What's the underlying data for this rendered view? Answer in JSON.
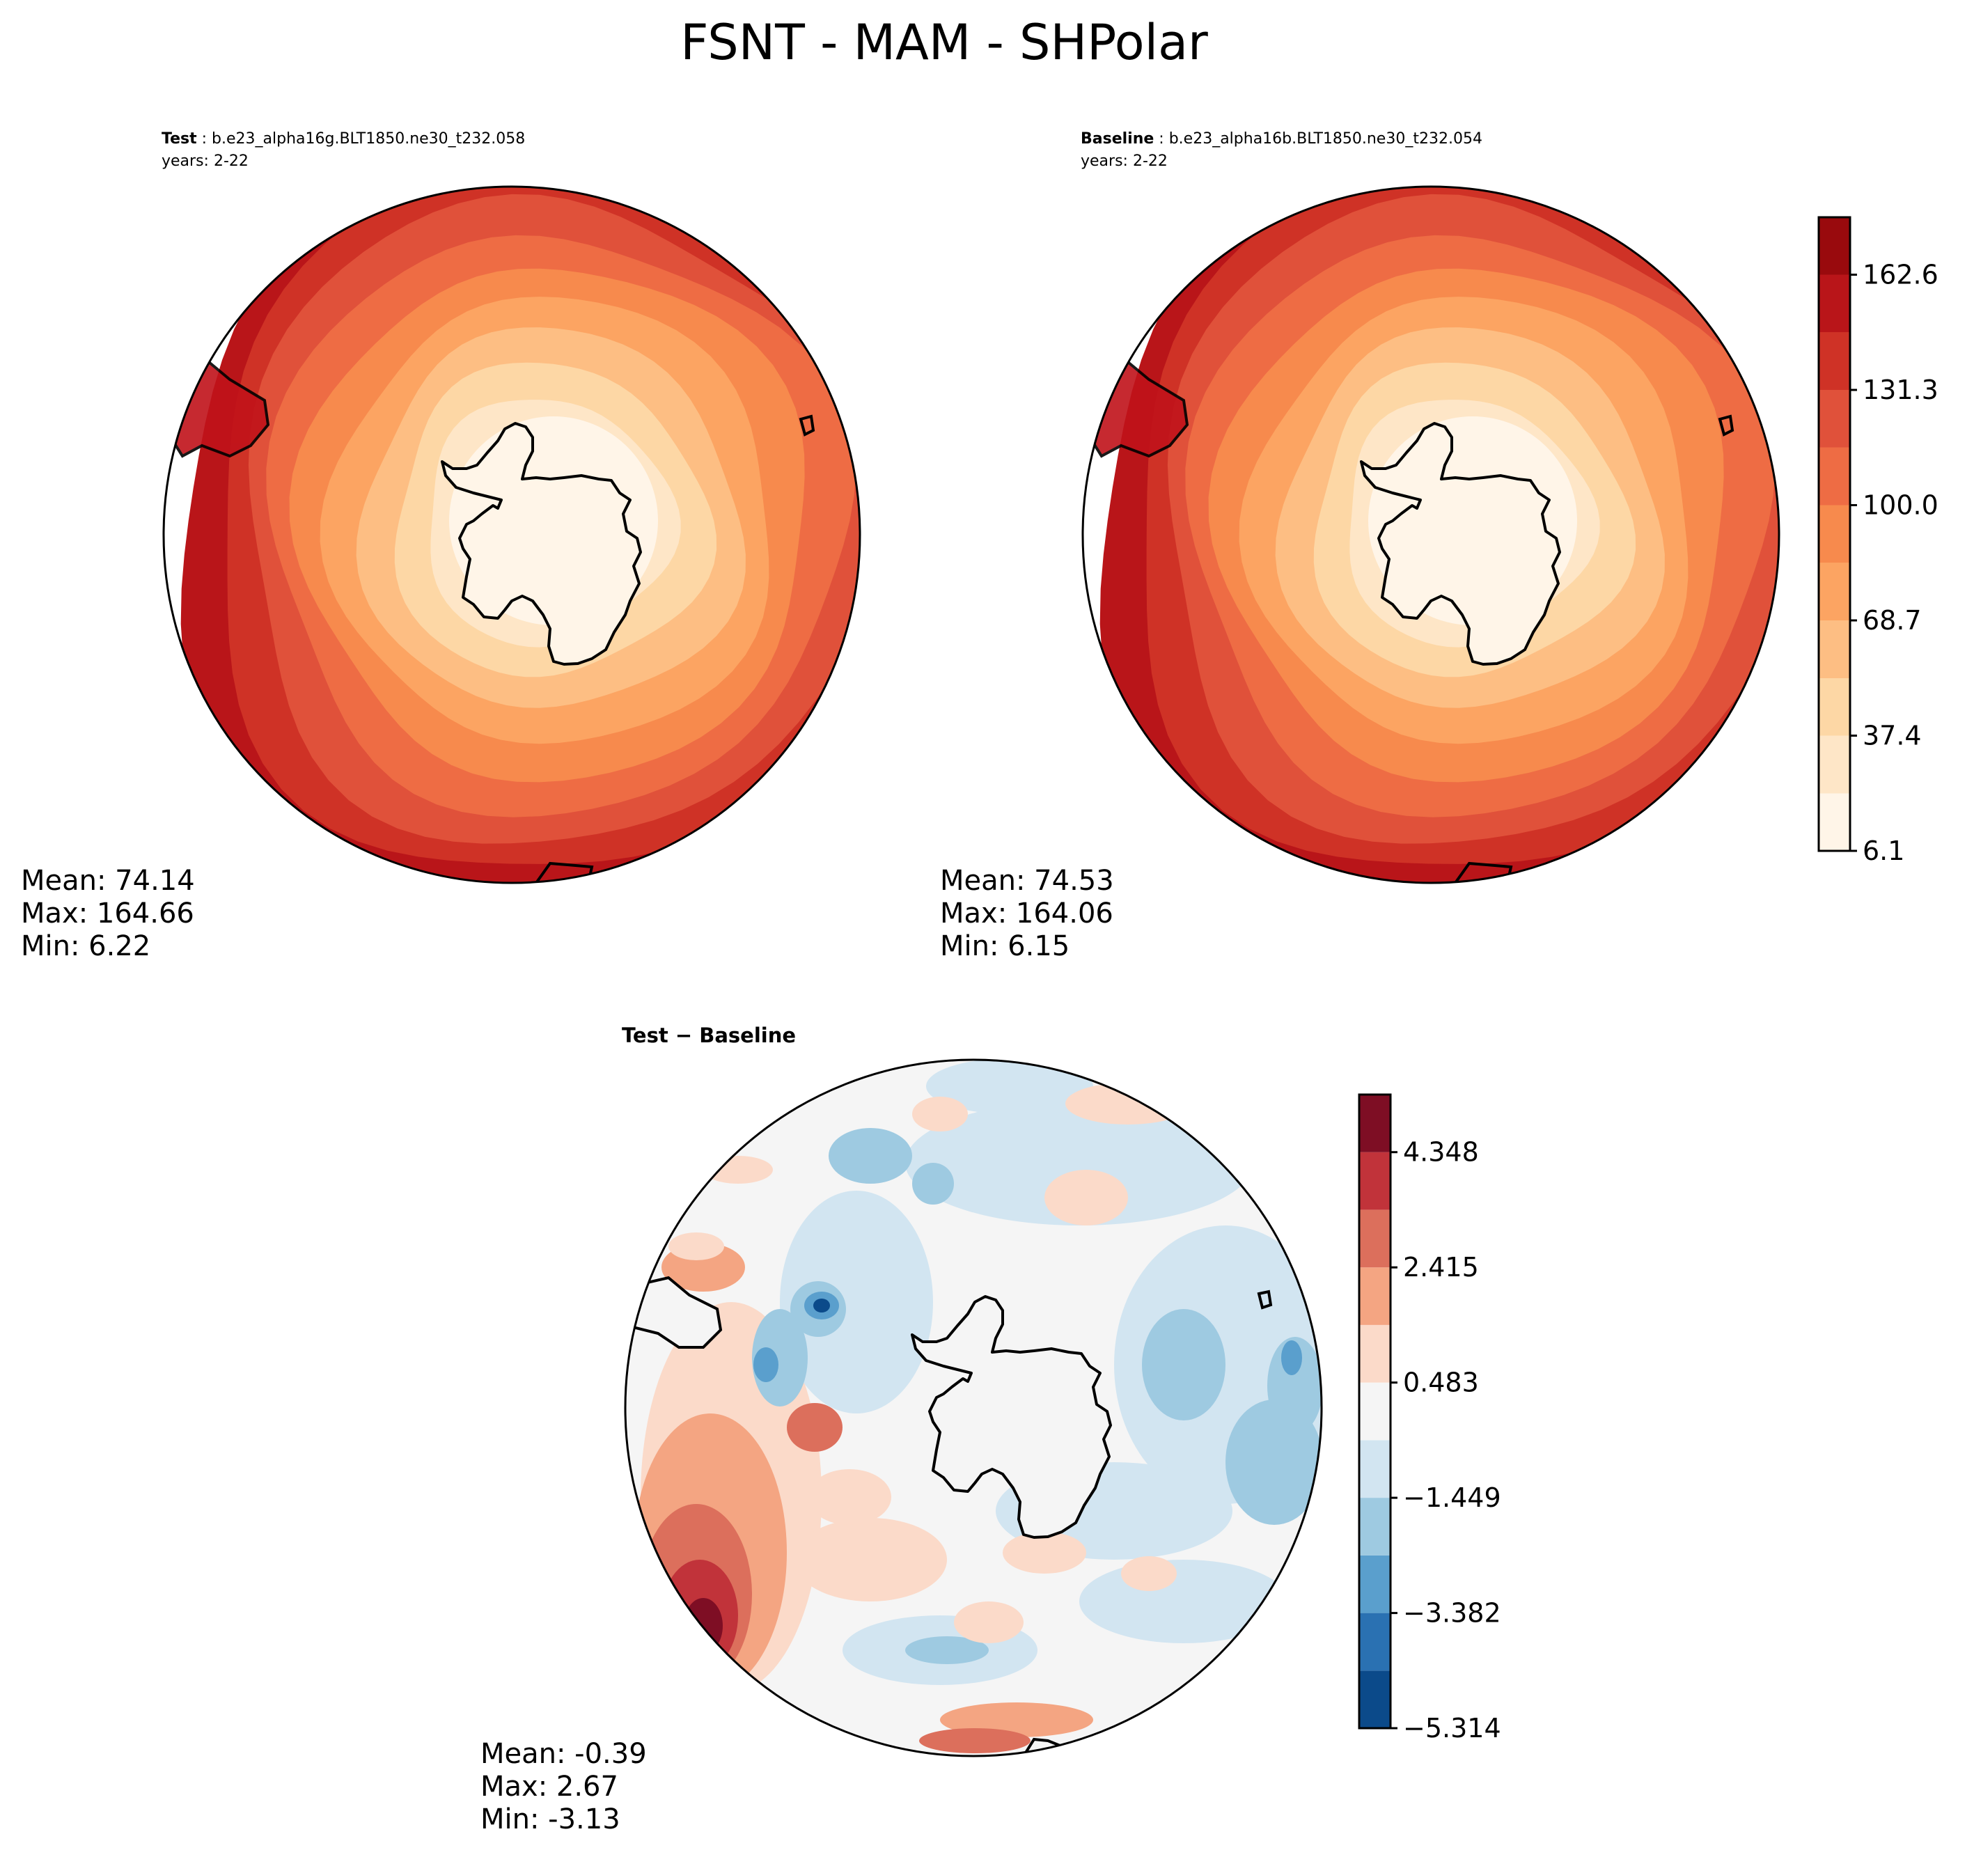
{
  "figure": {
    "title": "FSNT - MAM - SHPolar"
  },
  "chart_data": [
    {
      "type": "heatmap",
      "projection": "south-polar-stereographic",
      "panel": "test",
      "title_label": "Test",
      "case": "b.e23_alpha16g.BLT1850.ne30_t232.058",
      "years": "years: 2-22",
      "stats": {
        "mean": "Mean: 74.14",
        "max": "Max: 164.66",
        "min": "Min:  6.22"
      },
      "field": "concentric bands increasing from the pole toward the equatorward edge"
    },
    {
      "type": "heatmap",
      "projection": "south-polar-stereographic",
      "panel": "baseline",
      "title_label": "Baseline",
      "case": "b.e23_alpha16b.BLT1850.ne30_t232.054",
      "years": "years: 2-22",
      "stats": {
        "mean": "Mean: 74.53",
        "max": "Max: 164.06",
        "min": "Min:  6.15"
      },
      "colorbar": {
        "ticks": [
          "6.1",
          "37.4",
          "68.7",
          "100.0",
          "131.3",
          "162.6"
        ],
        "range": [
          6.1,
          178.2
        ],
        "levels": [
          6.1,
          21.7,
          37.4,
          53.0,
          68.7,
          84.4,
          100.0,
          115.7,
          131.3,
          147.0,
          162.6,
          178.2
        ],
        "colors": [
          "#fff5e8",
          "#fee6c7",
          "#fdd7a5",
          "#fdbe83",
          "#fca462",
          "#f78a4d",
          "#ee6c44",
          "#e0513a",
          "#cf3226",
          "#b91519",
          "#990a0d"
        ]
      }
    },
    {
      "type": "heatmap",
      "projection": "south-polar-stereographic",
      "panel": "difference",
      "title_label": "Test − Baseline",
      "stats": {
        "mean": "Mean: -0.39",
        "max": "Max:  2.67",
        "min": "Min: -3.13"
      },
      "colorbar": {
        "ticks": [
          "−5.314",
          "−3.382",
          "−1.449",
          "0.483",
          "2.415",
          "4.348"
        ],
        "range": [
          -5.314,
          5.314
        ],
        "levels": [
          -5.314,
          -4.348,
          -3.382,
          -2.415,
          -1.449,
          -0.483,
          0.483,
          1.449,
          2.415,
          3.382,
          4.348,
          5.314
        ],
        "colors": [
          "#0b4a8a",
          "#2a71b2",
          "#5a9fcd",
          "#9ecae1",
          "#d2e5f1",
          "#f5f5f5",
          "#fbdac9",
          "#f4a582",
          "#dc6f5c",
          "#c1333a",
          "#7e0e24"
        ]
      }
    }
  ]
}
